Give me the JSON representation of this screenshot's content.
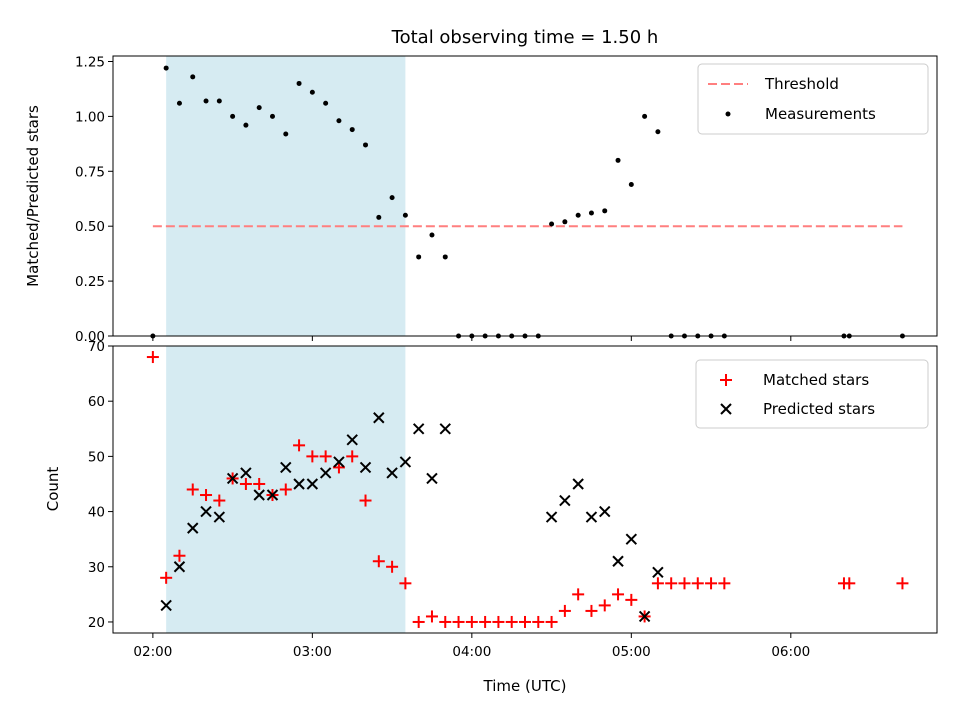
{
  "chart_data": [
    {
      "type": "scatter",
      "title": "Total observing time = 1.50 h",
      "xlabel": "",
      "ylabel": "Matched/Predicted stars",
      "ylim": [
        0,
        1.275
      ],
      "yticks": [
        "0.00",
        "0.25",
        "0.50",
        "0.75",
        "1.00",
        "1.25"
      ],
      "xlim": [
        "01:45",
        "06:55"
      ],
      "legend_position": "top-right",
      "shaded_interval": [
        "02:05",
        "03:35"
      ],
      "threshold": {
        "name": "Threshold",
        "value": 0.5,
        "x_range": [
          "02:00",
          "06:42"
        ],
        "color": "#ff7f7f"
      },
      "series": [
        {
          "name": "Measurements",
          "color": "#000000",
          "x": [
            "02:00",
            "02:05",
            "02:10",
            "02:15",
            "02:20",
            "02:25",
            "02:30",
            "02:35",
            "02:40",
            "02:45",
            "02:50",
            "02:55",
            "03:00",
            "03:05",
            "03:10",
            "03:15",
            "03:20",
            "03:25",
            "03:30",
            "03:35",
            "03:40",
            "03:45",
            "03:50",
            "03:55",
            "04:00",
            "04:05",
            "04:10",
            "04:15",
            "04:20",
            "04:25",
            "04:30",
            "04:35",
            "04:40",
            "04:45",
            "04:50",
            "04:55",
            "05:00",
            "05:05",
            "05:10",
            "05:15",
            "05:20",
            "05:25",
            "05:30",
            "05:35",
            "06:20",
            "06:22",
            "06:42"
          ],
          "y": [
            0.0,
            1.22,
            1.06,
            1.18,
            1.07,
            1.07,
            1.0,
            0.96,
            1.04,
            1.0,
            0.92,
            1.15,
            1.11,
            1.06,
            0.98,
            0.94,
            0.87,
            0.54,
            0.63,
            0.55,
            0.36,
            0.46,
            0.36,
            0.0,
            0.0,
            0.0,
            0.0,
            0.0,
            0.0,
            0.0,
            0.51,
            0.52,
            0.55,
            0.56,
            0.57,
            0.8,
            0.69,
            1.0,
            0.93,
            0.0,
            0.0,
            0.0,
            0.0,
            0.0,
            0.0,
            0.0,
            0.0
          ]
        }
      ]
    },
    {
      "type": "scatter",
      "title": "",
      "xlabel": "Time (UTC)",
      "ylabel": "Count",
      "ylim": [
        18,
        70
      ],
      "yticks": [
        "20",
        "30",
        "40",
        "50",
        "60",
        "70"
      ],
      "xlim": [
        "01:45",
        "06:55"
      ],
      "xticks": [
        "02:00",
        "03:00",
        "04:00",
        "05:00",
        "06:00"
      ],
      "legend_position": "top-right",
      "shaded_interval": [
        "02:05",
        "03:35"
      ],
      "series": [
        {
          "name": "Matched stars",
          "color": "#ff0000",
          "marker": "plus",
          "x": [
            "02:00",
            "02:05",
            "02:10",
            "02:15",
            "02:20",
            "02:25",
            "02:30",
            "02:35",
            "02:40",
            "02:45",
            "02:50",
            "02:55",
            "03:00",
            "03:05",
            "03:10",
            "03:15",
            "03:20",
            "03:25",
            "03:30",
            "03:35",
            "03:40",
            "03:45",
            "03:50",
            "03:55",
            "04:00",
            "04:05",
            "04:10",
            "04:15",
            "04:20",
            "04:25",
            "04:30",
            "04:35",
            "04:40",
            "04:45",
            "04:50",
            "04:55",
            "05:00",
            "05:05",
            "05:10",
            "05:15",
            "05:20",
            "05:25",
            "05:30",
            "05:35",
            "06:20",
            "06:22",
            "06:42"
          ],
          "y": [
            68,
            28,
            32,
            44,
            43,
            42,
            46,
            45,
            45,
            43,
            44,
            52,
            50,
            50,
            48,
            50,
            42,
            31,
            30,
            27,
            20,
            21,
            20,
            20,
            20,
            20,
            20,
            20,
            20,
            20,
            20,
            22,
            25,
            22,
            23,
            25,
            24,
            21,
            27,
            27,
            27,
            27,
            27,
            27,
            27,
            27,
            27
          ]
        },
        {
          "name": "Predicted stars",
          "color": "#000000",
          "marker": "x",
          "x": [
            "02:05",
            "02:10",
            "02:15",
            "02:20",
            "02:25",
            "02:30",
            "02:35",
            "02:40",
            "02:45",
            "02:50",
            "02:55",
            "03:00",
            "03:05",
            "03:10",
            "03:15",
            "03:20",
            "03:25",
            "03:30",
            "03:35",
            "03:40",
            "03:45",
            "03:50",
            "04:30",
            "04:35",
            "04:40",
            "04:45",
            "04:50",
            "04:55",
            "05:00",
            "05:05",
            "05:10"
          ],
          "y": [
            23,
            30,
            37,
            40,
            39,
            46,
            47,
            43,
            43,
            48,
            45,
            45,
            47,
            49,
            53,
            48,
            57,
            47,
            49,
            55,
            46,
            55,
            39,
            42,
            45,
            39,
            40,
            31,
            35,
            21,
            29
          ]
        }
      ]
    }
  ]
}
